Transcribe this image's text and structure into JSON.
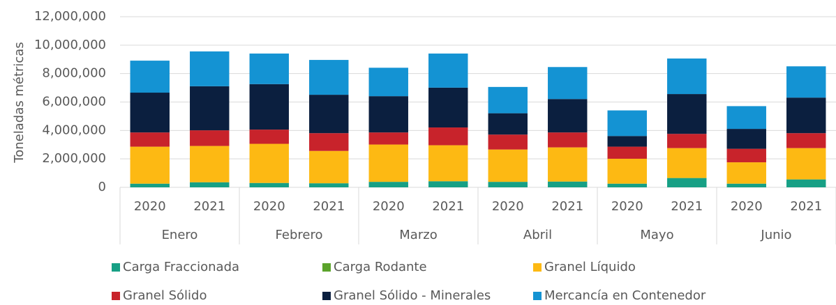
{
  "chart_data": {
    "type": "stacked_bar",
    "y_label": "Toneladas métricas",
    "categories": [
      "2020",
      "2021",
      "2020",
      "2021",
      "2020",
      "2021",
      "2020",
      "2021",
      "2020",
      "2021",
      "2020",
      "2021"
    ],
    "groups": [
      "Enero",
      "Febrero",
      "Marzo",
      "Abril",
      "Mayo",
      "Junio"
    ],
    "series": [
      {
        "name": "Carga Fraccionada",
        "color": "#17a085",
        "values": [
          250000,
          350000,
          300000,
          280000,
          380000,
          420000,
          380000,
          400000,
          250000,
          650000,
          250000,
          550000
        ]
      },
      {
        "name": "Carga Rodante",
        "color": "#5ba32b",
        "values": [
          10000,
          10000,
          10000,
          10000,
          10000,
          10000,
          10000,
          10000,
          10000,
          10000,
          10000,
          10000
        ]
      },
      {
        "name": "Granel Líquido",
        "color": "#fdb913",
        "values": [
          2600000,
          2550000,
          2750000,
          2270000,
          2620000,
          2530000,
          2270000,
          2400000,
          1750000,
          2100000,
          1500000,
          2200000
        ]
      },
      {
        "name": "Granel Sólido",
        "color": "#c8232b",
        "values": [
          1000000,
          1100000,
          1000000,
          1250000,
          850000,
          1250000,
          1050000,
          1050000,
          850000,
          1000000,
          950000,
          1050000
        ]
      },
      {
        "name": "Granel Sólido - Minerales",
        "color": "#0b1f3f",
        "values": [
          2800000,
          3100000,
          3200000,
          2700000,
          2550000,
          2800000,
          1500000,
          2350000,
          750000,
          2800000,
          1400000,
          2500000
        ]
      },
      {
        "name": "Mercancía en Contenedor",
        "color": "#1493d3",
        "values": [
          2250000,
          2450000,
          2150000,
          2450000,
          2000000,
          2400000,
          1850000,
          2250000,
          1800000,
          2500000,
          1600000,
          2200000
        ]
      }
    ],
    "ylim": [
      0,
      12000000
    ],
    "yticks": [
      0,
      {
        "value": 2000000,
        "label": "2,000,000"
      },
      {
        "value": 4000000,
        "label": "4,000,000"
      },
      {
        "value": 6000000,
        "label": "6,000,000"
      },
      {
        "value": 8000000,
        "label": "8,000,000"
      },
      {
        "value": 10000000,
        "label": "10,000,000"
      },
      {
        "value": 12000000,
        "label": "12,000,000"
      }
    ],
    "grid": true
  }
}
